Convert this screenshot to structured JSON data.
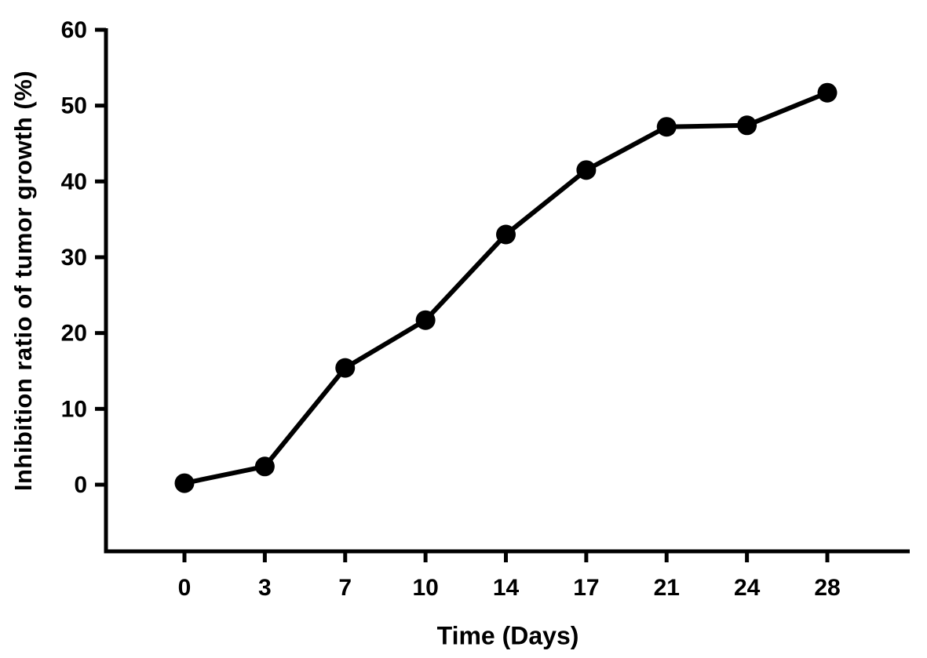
{
  "page": {
    "background_color": "#ffffff"
  },
  "chart_data": {
    "type": "line",
    "title": "",
    "xlabel": "Time (Days)",
    "ylabel": "Inhibition ratio of tumor growth (%)",
    "categories": [
      "0",
      "3",
      "7",
      "10",
      "14",
      "17",
      "21",
      "24",
      "28"
    ],
    "series": [
      {
        "name": "Inhibition ratio of tumor growth",
        "values": [
          0.2,
          2.4,
          15.4,
          21.7,
          33.0,
          41.5,
          47.2,
          47.4,
          51.7
        ]
      }
    ],
    "y_ticks": [
      0,
      10,
      20,
      30,
      40,
      50,
      60
    ],
    "ylim": [
      -8.8,
      60
    ],
    "xlim_note": "categorical equal spacing",
    "grid": false,
    "legend_position": "none",
    "marker": "filled-circle",
    "line_color": "#000000",
    "marker_color": "#000000",
    "axis_color": "#000000",
    "tick_direction": "out"
  }
}
